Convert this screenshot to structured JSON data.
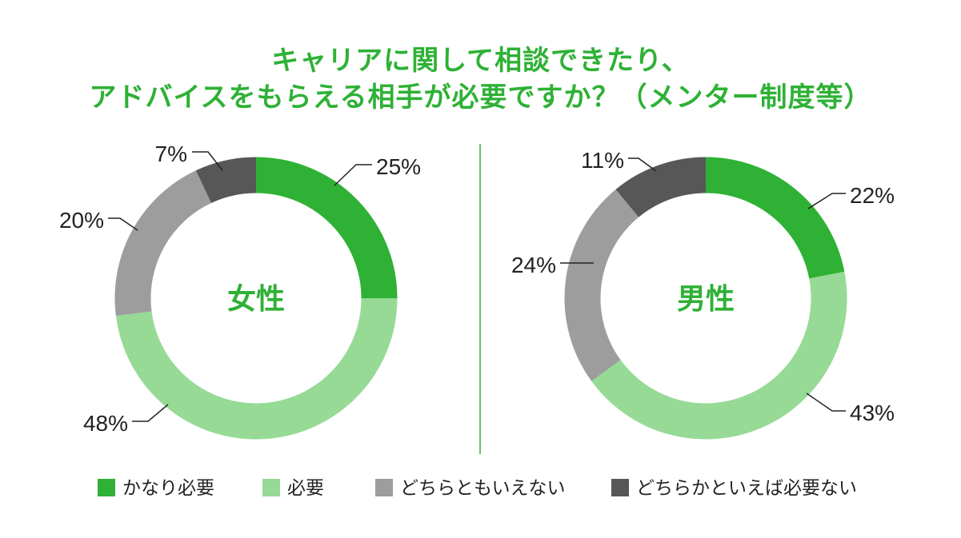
{
  "title": {
    "line1": "キャリアに関して相談できたり、",
    "line2": "アドバイスをもらえる相手が必要ですか？（メンター制度等）"
  },
  "colors": {
    "title": "#2eb135",
    "divider": "#2eb135"
  },
  "chart_data": [
    {
      "type": "pie",
      "center_label": "女性",
      "categories": [
        "かなり必要",
        "必要",
        "どちらともいえない",
        "どちらかといえば必要ない"
      ],
      "values": [
        25,
        48,
        20,
        7
      ],
      "labels": [
        "25%",
        "48%",
        "20%",
        "7%"
      ],
      "colors": [
        "#2eb135",
        "#96da96",
        "#9e9d9e",
        "#585758"
      ]
    },
    {
      "type": "pie",
      "center_label": "男性",
      "categories": [
        "かなり必要",
        "必要",
        "どちらともいえない",
        "どちらかといえば必要ない"
      ],
      "values": [
        22,
        43,
        24,
        11
      ],
      "labels": [
        "22%",
        "43%",
        "24%",
        "11%"
      ],
      "colors": [
        "#2eb135",
        "#96da96",
        "#9e9d9e",
        "#585758"
      ]
    }
  ],
  "legend": [
    {
      "label": "かなり必要",
      "color": "#2eb135"
    },
    {
      "label": "必要",
      "color": "#96da96"
    },
    {
      "label": "どちらともいえない",
      "color": "#9e9d9e"
    },
    {
      "label": "どちらかといえば必要ない",
      "color": "#585758"
    }
  ]
}
